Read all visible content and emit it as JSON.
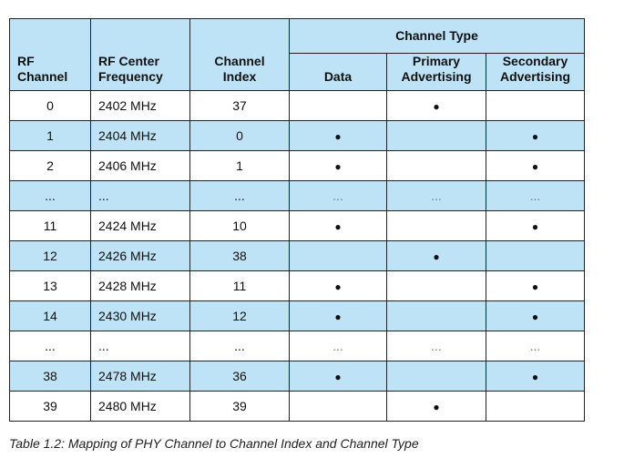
{
  "table": {
    "header": {
      "group": "Channel Type",
      "columns": [
        "RF Channel",
        "RF Center Frequency",
        "Channel Index",
        "Data",
        "Primary Advertising",
        "Secondary Advertising"
      ]
    },
    "rows": [
      [
        "0",
        "2402 MHz",
        "37",
        null,
        "●",
        null
      ],
      [
        "1",
        "2404 MHz",
        "0",
        "●",
        null,
        "●"
      ],
      [
        "2",
        "2406 MHz",
        "1",
        "●",
        null,
        "●"
      ],
      [
        "...",
        "...",
        "...",
        "...",
        "...",
        "..."
      ],
      [
        "11",
        "2424 MHz",
        "10",
        "●",
        null,
        "●"
      ],
      [
        "12",
        "2426 MHz",
        "38",
        null,
        "●",
        null
      ],
      [
        "13",
        "2428 MHz",
        "11",
        "●",
        null,
        "●"
      ],
      [
        "14",
        "2430 MHz",
        "12",
        "●",
        null,
        "●"
      ],
      [
        "...",
        "...",
        "...",
        "...",
        "...",
        "..."
      ],
      [
        "38",
        "2478 MHz",
        "36",
        "●",
        null,
        "●"
      ],
      [
        "39",
        "2480 MHz",
        "39",
        null,
        "●",
        null
      ]
    ],
    "caption": "Table 1.2:  Mapping of PHY Channel to Channel Index and Channel Type"
  }
}
